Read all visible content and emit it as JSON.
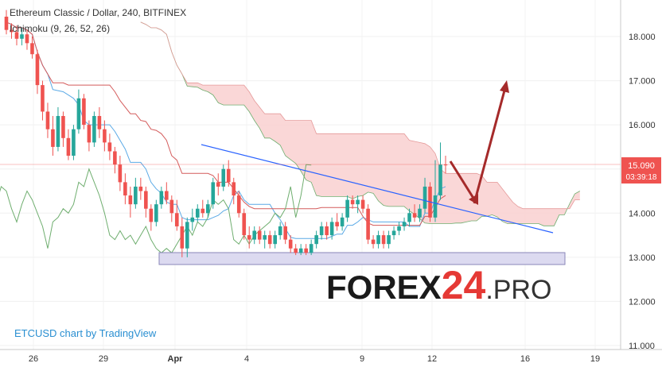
{
  "header": {
    "title": "Ethereum Classic / Dollar, 240, BITFINEX",
    "indicator": "Ichimoku (9, 26, 52, 26)"
  },
  "attribution": "ETCUSD chart by TradingView",
  "watermark": {
    "brand": "FOREX",
    "number": "24",
    "suffix": ".PRO"
  },
  "price_label": {
    "value": "15.090",
    "countdown": "03:39:18"
  },
  "colors": {
    "up": "#26a69a",
    "down": "#ef5350",
    "cloud": "#f9d0d0",
    "leading_span": "#e59a9a",
    "base_line": "#d45b5b",
    "conversion_line": "#5aa9e6",
    "lagging_line": "#6fae6f",
    "trendline": "#2962ff",
    "arrow": "#a52a2a",
    "support_zone": "#dcdaf0",
    "price_badge": "#ef5350",
    "accent_24": "#e53935"
  },
  "chart_data": {
    "type": "candlestick",
    "symbol": "ETCUSD",
    "timeframe": "240",
    "exchange": "BITFINEX",
    "ylim": [
      10.8,
      18.7
    ],
    "y_ticks": [
      "11.000",
      "12.000",
      "13.000",
      "14.000",
      "15.000",
      "16.000",
      "17.000",
      "18.000"
    ],
    "x_ticks": [
      "26",
      "29",
      "Apr",
      "4",
      "9",
      "12",
      "16",
      "19"
    ],
    "last_price": 15.09,
    "ohlc": [
      [
        18.45,
        18.6,
        18.05,
        18.15
      ],
      [
        18.15,
        18.3,
        17.95,
        18.1
      ],
      [
        18.1,
        18.25,
        17.8,
        17.95
      ],
      [
        17.95,
        18.2,
        17.8,
        18.05
      ],
      [
        18.05,
        18.15,
        17.7,
        17.85
      ],
      [
        17.85,
        18.0,
        17.5,
        17.6
      ],
      [
        17.6,
        17.7,
        16.7,
        16.9
      ],
      [
        16.9,
        17.0,
        16.1,
        16.3
      ],
      [
        16.3,
        16.5,
        15.7,
        15.9
      ],
      [
        15.9,
        16.2,
        15.3,
        15.5
      ],
      [
        15.5,
        16.4,
        15.4,
        16.2
      ],
      [
        16.2,
        16.3,
        15.5,
        15.7
      ],
      [
        15.7,
        15.9,
        15.2,
        15.3
      ],
      [
        15.3,
        16.0,
        15.2,
        15.9
      ],
      [
        15.9,
        16.8,
        15.8,
        16.6
      ],
      [
        16.6,
        16.7,
        15.9,
        16.0
      ],
      [
        16.0,
        16.1,
        15.4,
        15.6
      ],
      [
        15.6,
        16.3,
        15.5,
        16.2
      ],
      [
        16.2,
        16.4,
        15.7,
        15.9
      ],
      [
        15.9,
        16.1,
        15.4,
        15.6
      ],
      [
        15.6,
        15.8,
        15.2,
        15.4
      ],
      [
        15.4,
        15.5,
        14.9,
        15.1
      ],
      [
        15.1,
        15.3,
        14.5,
        14.7
      ],
      [
        14.7,
        14.9,
        14.2,
        14.4
      ],
      [
        14.4,
        14.6,
        13.9,
        14.2
      ],
      [
        14.2,
        14.8,
        14.1,
        14.6
      ],
      [
        14.6,
        14.8,
        14.3,
        14.5
      ],
      [
        14.5,
        14.6,
        13.9,
        14.1
      ],
      [
        14.1,
        14.2,
        13.6,
        13.8
      ],
      [
        13.8,
        14.3,
        13.7,
        14.2
      ],
      [
        14.2,
        14.6,
        14.1,
        14.5
      ],
      [
        14.5,
        14.7,
        14.2,
        14.3
      ],
      [
        14.3,
        14.4,
        13.8,
        14.0
      ],
      [
        14.0,
        14.3,
        13.6,
        13.7
      ],
      [
        13.7,
        13.9,
        13.0,
        13.2
      ],
      [
        13.2,
        13.9,
        13.0,
        13.8
      ],
      [
        13.8,
        14.1,
        13.6,
        13.9
      ],
      [
        13.9,
        14.2,
        13.8,
        14.1
      ],
      [
        14.1,
        14.3,
        13.9,
        14.0
      ],
      [
        14.0,
        14.3,
        13.9,
        14.2
      ],
      [
        14.2,
        14.8,
        14.1,
        14.7
      ],
      [
        14.7,
        14.9,
        14.4,
        14.6
      ],
      [
        14.6,
        15.1,
        14.5,
        15.0
      ],
      [
        15.0,
        15.2,
        14.6,
        14.7
      ],
      [
        14.7,
        14.8,
        14.2,
        14.4
      ],
      [
        14.4,
        14.5,
        13.9,
        14.0
      ],
      [
        14.0,
        14.1,
        13.4,
        13.5
      ],
      [
        13.5,
        13.7,
        13.2,
        13.4
      ],
      [
        13.4,
        13.7,
        13.3,
        13.6
      ],
      [
        13.6,
        13.7,
        13.3,
        13.4
      ],
      [
        13.4,
        13.6,
        13.2,
        13.5
      ],
      [
        13.5,
        13.6,
        13.2,
        13.3
      ],
      [
        13.3,
        13.6,
        13.2,
        13.5
      ],
      [
        13.5,
        13.8,
        13.4,
        13.7
      ],
      [
        13.7,
        13.8,
        13.3,
        13.4
      ],
      [
        13.4,
        13.5,
        13.1,
        13.2
      ],
      [
        13.2,
        13.3,
        13.05,
        13.1
      ],
      [
        13.1,
        13.3,
        13.05,
        13.2
      ],
      [
        13.2,
        13.3,
        13.05,
        13.1
      ],
      [
        13.1,
        13.4,
        13.05,
        13.3
      ],
      [
        13.3,
        13.6,
        13.2,
        13.5
      ],
      [
        13.5,
        13.8,
        13.4,
        13.7
      ],
      [
        13.7,
        13.8,
        13.4,
        13.5
      ],
      [
        13.5,
        13.9,
        13.4,
        13.8
      ],
      [
        13.8,
        14.0,
        13.6,
        13.7
      ],
      [
        13.7,
        14.0,
        13.6,
        13.9
      ],
      [
        13.9,
        14.4,
        13.8,
        14.3
      ],
      [
        14.3,
        14.4,
        14.1,
        14.2
      ],
      [
        14.2,
        14.4,
        14.0,
        14.3
      ],
      [
        14.3,
        14.4,
        14.0,
        14.1
      ],
      [
        14.1,
        14.2,
        13.3,
        13.4
      ],
      [
        13.4,
        13.5,
        13.2,
        13.3
      ],
      [
        13.3,
        13.6,
        13.2,
        13.5
      ],
      [
        13.5,
        13.6,
        13.2,
        13.3
      ],
      [
        13.3,
        13.6,
        13.2,
        13.5
      ],
      [
        13.5,
        13.7,
        13.4,
        13.6
      ],
      [
        13.6,
        13.8,
        13.5,
        13.7
      ],
      [
        13.7,
        13.9,
        13.6,
        13.8
      ],
      [
        13.8,
        14.1,
        13.7,
        14.0
      ],
      [
        14.0,
        14.2,
        13.8,
        13.9
      ],
      [
        13.9,
        14.2,
        13.8,
        14.1
      ],
      [
        14.1,
        14.8,
        14.0,
        14.6
      ],
      [
        14.6,
        14.7,
        13.8,
        13.9
      ],
      [
        13.9,
        15.2,
        13.8,
        14.4
      ],
      [
        14.4,
        15.6,
        14.3,
        15.1
      ],
      [
        15.1,
        15.3,
        14.9,
        15.09
      ]
    ]
  }
}
